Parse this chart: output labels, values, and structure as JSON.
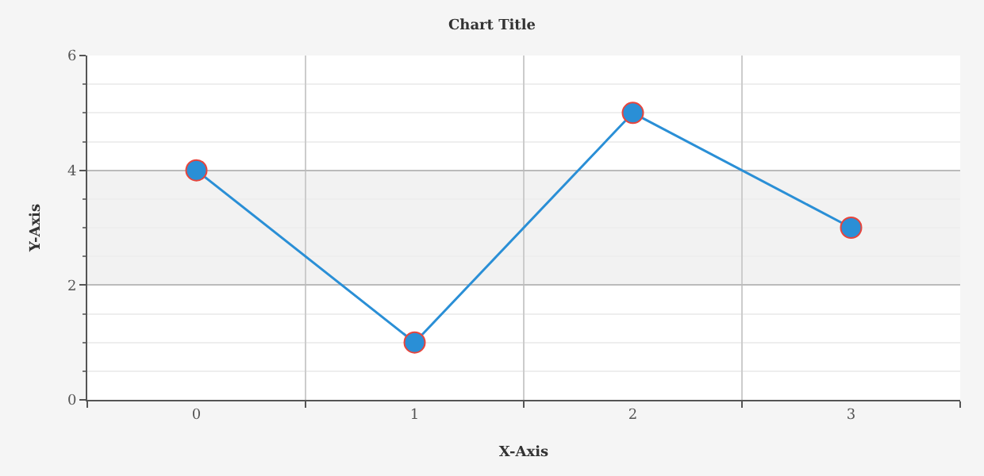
{
  "chart_data": {
    "type": "line",
    "title": "Chart Title",
    "xlabel": "X-Axis",
    "ylabel": "Y-Axis",
    "categories": [
      "0",
      "1",
      "2",
      "3"
    ],
    "series": [
      {
        "color": "#2a8fd6",
        "values": [
          4,
          1,
          5,
          3
        ]
      }
    ],
    "ylim": [
      0,
      6
    ],
    "yticks": [
      0,
      2,
      4,
      6
    ],
    "grid": true,
    "marker": "circle",
    "line_style": "solid",
    "bands": [
      {
        "axis": "y",
        "from": 2,
        "to": 4,
        "color": "#f2f2f2"
      }
    ]
  }
}
